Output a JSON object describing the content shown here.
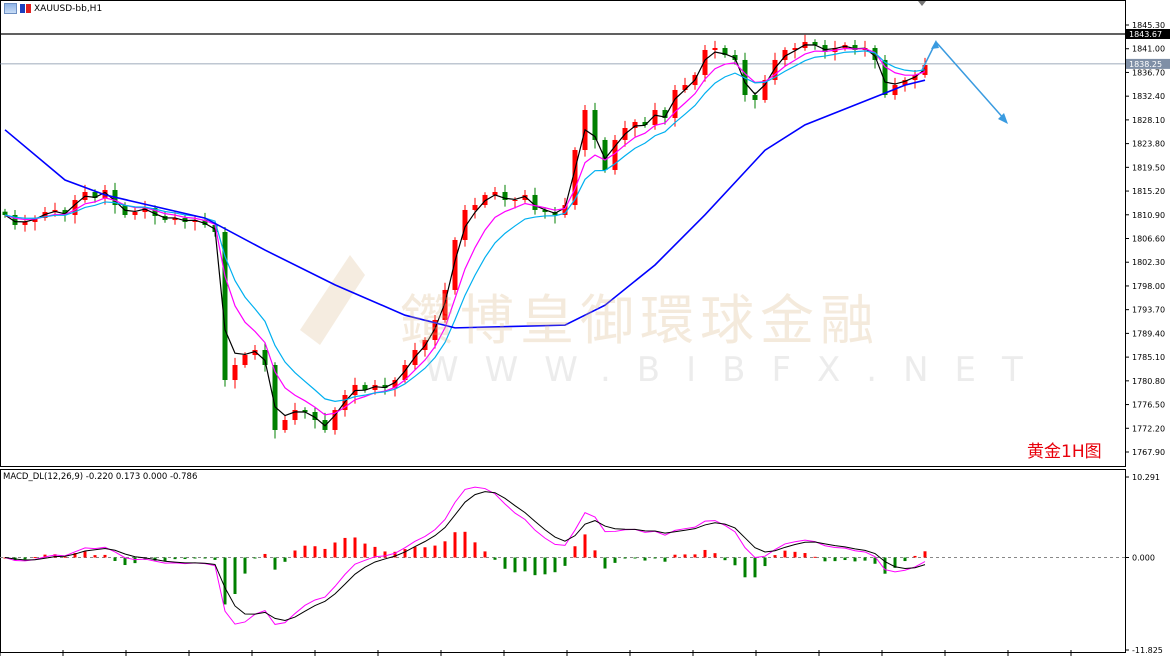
{
  "window": {
    "title": "XAUUSD-bb,H1",
    "icons": [
      "chart-window-icon",
      "bar-chart-icon"
    ]
  },
  "watermark": {
    "cn": "鑽博皇御環球金融",
    "url": "WWW.BIBFX.NET"
  },
  "annotation": {
    "label": "黄金1H图",
    "color": "#e8000b",
    "arrow_color": "#3a9be0",
    "forecast": "up then down"
  },
  "chart_data": [
    {
      "type": "candlestick",
      "title": "XAUUSD-bb,H1",
      "ylim": [
        1765.0,
        1848.0
      ],
      "y_ticks": [
        "1845.30",
        "1841.00",
        "1836.70",
        "1832.40",
        "1828.10",
        "1823.80",
        "1819.50",
        "1815.20",
        "1810.90",
        "1806.60",
        "1802.30",
        "1798.00",
        "1793.70",
        "1789.40",
        "1785.10",
        "1780.80",
        "1776.50",
        "1772.20",
        "1767.90"
      ],
      "price_lines": [
        {
          "label": "1843.67",
          "value": 1843.67,
          "color": "#000000"
        },
        {
          "label": "1838.25",
          "value": 1838.25,
          "color": "#7f8fa6"
        }
      ],
      "up_color": "#ff0000",
      "down_color": "#008000",
      "close": [
        1810.86,
        1809.05,
        1809.59,
        1810.32,
        1811.4,
        1811.77,
        1810.86,
        1813.58,
        1815.03,
        1813.94,
        1815.39,
        1812.67,
        1810.86,
        1811.4,
        1812.13,
        1810.68,
        1809.95,
        1810.32,
        1809.59,
        1809.95,
        1809.05,
        1807.78,
        1780.95,
        1783.67,
        1785.48,
        1786.39,
        1783.67,
        1771.89,
        1773.7,
        1775.51,
        1775.15,
        1773.7,
        1771.89,
        1775.51,
        1778.23,
        1780.05,
        1779.14,
        1780.05,
        1779.5,
        1780.95,
        1783.67,
        1786.39,
        1788.2,
        1791.83,
        1797.27,
        1806.33,
        1811.77,
        1812.67,
        1814.49,
        1815.03,
        1813.58,
        1813.58,
        1814.49,
        1811.77,
        1811.4,
        1810.86,
        1812.67,
        1822.64,
        1829.89,
        1824.46,
        1819.02,
        1824.46,
        1826.63,
        1827.72,
        1827.17,
        1829.89,
        1828.44,
        1833.52,
        1834.42,
        1836.24,
        1840.77,
        1841.13,
        1839.86,
        1838.96,
        1832.61,
        1831.71,
        1835.33,
        1838.96,
        1840.77,
        1841.13,
        1842.22,
        1841.67,
        1840.41,
        1841.13,
        1841.67,
        1840.77,
        1841.13,
        1838.96,
        1832.61,
        1834.42,
        1835.33,
        1836.24,
        1838.05
      ],
      "moving_averages": [
        {
          "color": "#000000",
          "kind": "ema",
          "period": 2
        },
        {
          "color": "#ff00ff",
          "kind": "ema",
          "period": 5
        },
        {
          "color": "#00b0f0",
          "kind": "ema",
          "period": 8
        },
        {
          "color": "#0000ff",
          "kind": "slow",
          "points": [
            [
              0,
              1826.3
            ],
            [
              6,
              1817.2
            ],
            [
              10,
              1814.5
            ],
            [
              20,
              1810.3
            ],
            [
              26,
              1804.5
            ],
            [
              33,
              1798.2
            ],
            [
              40,
              1792.7
            ],
            [
              45,
              1790.4
            ],
            [
              56,
              1790.9
            ],
            [
              60,
              1794.5
            ],
            [
              65,
              1801.8
            ],
            [
              70,
              1810.9
            ],
            [
              76,
              1822.6
            ],
            [
              80,
              1827.2
            ],
            [
              85,
              1830.8
            ],
            [
              90,
              1834.4
            ],
            [
              92,
              1835.3
            ]
          ]
        }
      ]
    },
    {
      "type": "macd",
      "label": "MACD_DL(12,26,9) -0.220 0.173 0.000 -0.786",
      "ylim": [
        -11.825,
        10.291
      ],
      "y_ticks": [
        "10.291",
        "0.000",
        "-11.825"
      ],
      "hist_up_color": "#ff0000",
      "hist_down_color": "#008000",
      "line_colors": [
        "#ff00ff",
        "#000000"
      ]
    }
  ]
}
